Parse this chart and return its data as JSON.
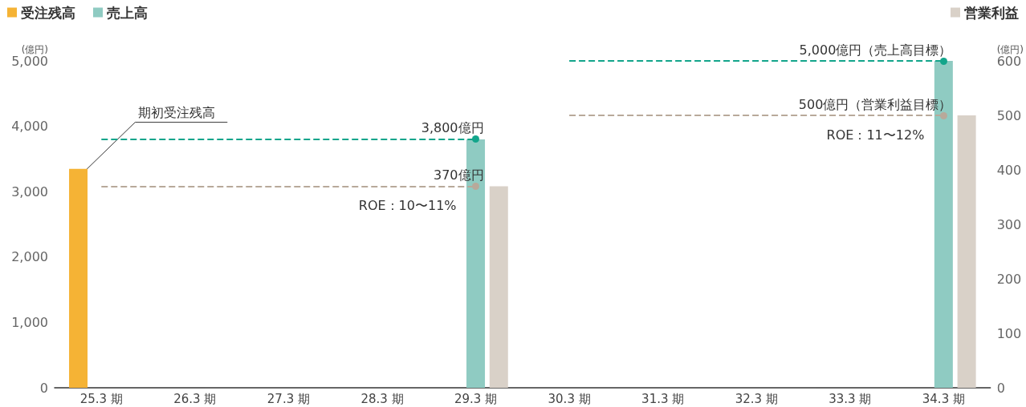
{
  "chart_data": {
    "type": "bar",
    "ylabel": "(億円)",
    "y2label": "(億円)",
    "categories": [
      "25.3 期",
      "26.3 期",
      "27.3 期",
      "28.3 期",
      "29.3 期",
      "30.3 期",
      "31.3 期",
      "32.3 期",
      "33.3 期",
      "34.3 期"
    ],
    "series": [
      {
        "name": "受注残高",
        "color": "#f5b335",
        "values": [
          3350,
          null,
          null,
          null,
          null,
          null,
          null,
          null,
          null,
          null
        ]
      },
      {
        "name": "売上高",
        "color": "#8fcbc2",
        "values": [
          null,
          null,
          null,
          null,
          3800,
          null,
          null,
          null,
          null,
          5000
        ]
      },
      {
        "name": "営業利益",
        "color": "#d9d1c8",
        "axis": "y2",
        "values": [
          null,
          null,
          null,
          null,
          370,
          null,
          null,
          null,
          null,
          500
        ]
      }
    ],
    "ylim": [
      0,
      5000
    ],
    "yticks": [
      0,
      {
        "value": 1000,
        "label": "1,000"
      },
      {
        "value": 2000,
        "label": "2,000"
      },
      {
        "value": 3000,
        "label": "3,000"
      },
      {
        "value": 4000,
        "label": "4,000"
      },
      {
        "value": 5000,
        "label": "5,000"
      }
    ],
    "y2lim": [
      0,
      600
    ],
    "y2ticks": [
      0,
      100,
      200,
      300,
      400,
      500,
      600
    ],
    "ref_lines": [
      {
        "axis": "y",
        "value": 3800,
        "label": "3,800億円",
        "color": "#13a58b",
        "line_style": "dashed"
      },
      {
        "axis": "y2",
        "value": 370,
        "label": "370億円",
        "color": "#b8a99a",
        "line_style": "dashed"
      },
      {
        "axis": "y",
        "value": 5000,
        "label": "5,000億円（売上高目標）",
        "color": "#13a58b",
        "line_style": "dashed"
      },
      {
        "axis": "y2",
        "value": 500,
        "label": "500億円（営業利益目標）",
        "color": "#b8a99a",
        "line_style": "dashed"
      }
    ],
    "annotations": [
      "期初受注残高",
      "ROE：10〜11%",
      "ROE：11〜12%"
    ],
    "legend": "top",
    "grid": false
  }
}
